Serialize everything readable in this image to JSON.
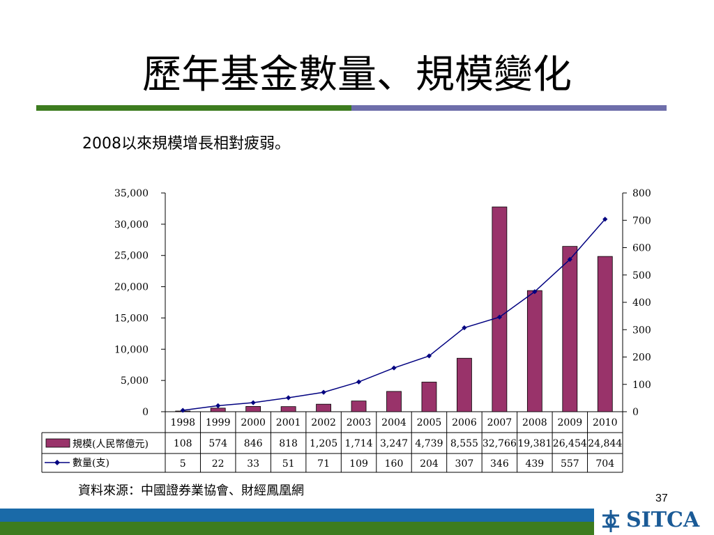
{
  "slide": {
    "title": "歷年基金數量、規模變化",
    "subtitle": "2008以來規模增長相對疲弱。",
    "source": "資料來源：中國證券業協會、財經鳳凰網",
    "page_number": "37",
    "logo_text": "SITCA"
  },
  "colors": {
    "rule_left": "#3d7c1f",
    "rule_right": "#6e6eaa",
    "bar": "#99336a",
    "line": "#000080",
    "logo": "#1a5a96"
  },
  "chart_data": {
    "type": "bar",
    "categories": [
      "1998",
      "1999",
      "2000",
      "2001",
      "2002",
      "2003",
      "2004",
      "2005",
      "2006",
      "2007",
      "2008",
      "2009",
      "2010"
    ],
    "series": [
      {
        "name": "規模(人民幣億元)",
        "type": "bar",
        "axis": "left",
        "values": [
          108,
          574,
          846,
          818,
          1205,
          1714,
          3247,
          4739,
          8555,
          32766,
          19381,
          26454,
          24844
        ],
        "labels": [
          "108",
          "574",
          "846",
          "818",
          "1,205",
          "1,714",
          "3,247",
          "4,739",
          "8,555",
          "32,766",
          "19,381",
          "26,454",
          "24,844"
        ]
      },
      {
        "name": "數量(支)",
        "type": "line",
        "axis": "right",
        "values": [
          5,
          22,
          33,
          51,
          71,
          109,
          160,
          204,
          307,
          346,
          439,
          557,
          704
        ],
        "labels": [
          "5",
          "22",
          "33",
          "51",
          "71",
          "109",
          "160",
          "204",
          "307",
          "346",
          "439",
          "557",
          "704"
        ]
      }
    ],
    "y_left": {
      "ylim": [
        0,
        35000
      ],
      "ticks": [
        "0",
        "5,000",
        "10,000",
        "15,000",
        "20,000",
        "25,000",
        "30,000",
        "35,000"
      ]
    },
    "y_right": {
      "ylim": [
        0,
        800
      ],
      "ticks": [
        "0",
        "100",
        "200",
        "300",
        "400",
        "500",
        "600",
        "700",
        "800"
      ]
    },
    "data_table": true,
    "grid": false
  }
}
